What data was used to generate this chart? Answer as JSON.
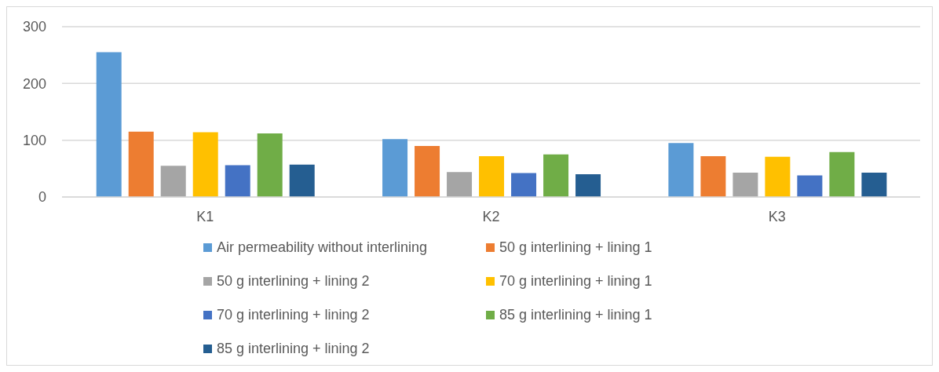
{
  "chart_data": {
    "type": "bar",
    "categories": [
      "K1",
      "K2",
      "K3"
    ],
    "series": [
      {
        "name": "Air permeability without interlining",
        "color": "#5b9bd5",
        "values": [
          255,
          102,
          95
        ]
      },
      {
        "name": "50 g interlining + lining 1",
        "color": "#ed7d31",
        "values": [
          115,
          90,
          72
        ]
      },
      {
        "name": "50 g interlining + lining 2",
        "color": "#a5a5a5",
        "values": [
          55,
          44,
          43
        ]
      },
      {
        "name": "70 g interlining + lining 1",
        "color": "#ffc000",
        "values": [
          114,
          72,
          71
        ]
      },
      {
        "name": "70 g interlining + lining 2",
        "color": "#4472c4",
        "values": [
          56,
          42,
          38
        ]
      },
      {
        "name": "85 g interlining + lining 1",
        "color": "#70ad47",
        "values": [
          112,
          75,
          79
        ]
      },
      {
        "name": "85 g interlining + lining 2",
        "color": "#255e91",
        "values": [
          57,
          40,
          43
        ]
      }
    ],
    "ylim": [
      0,
      300
    ],
    "yticks": [
      0,
      100,
      200,
      300
    ],
    "grid": "y",
    "legend": "bottom"
  }
}
